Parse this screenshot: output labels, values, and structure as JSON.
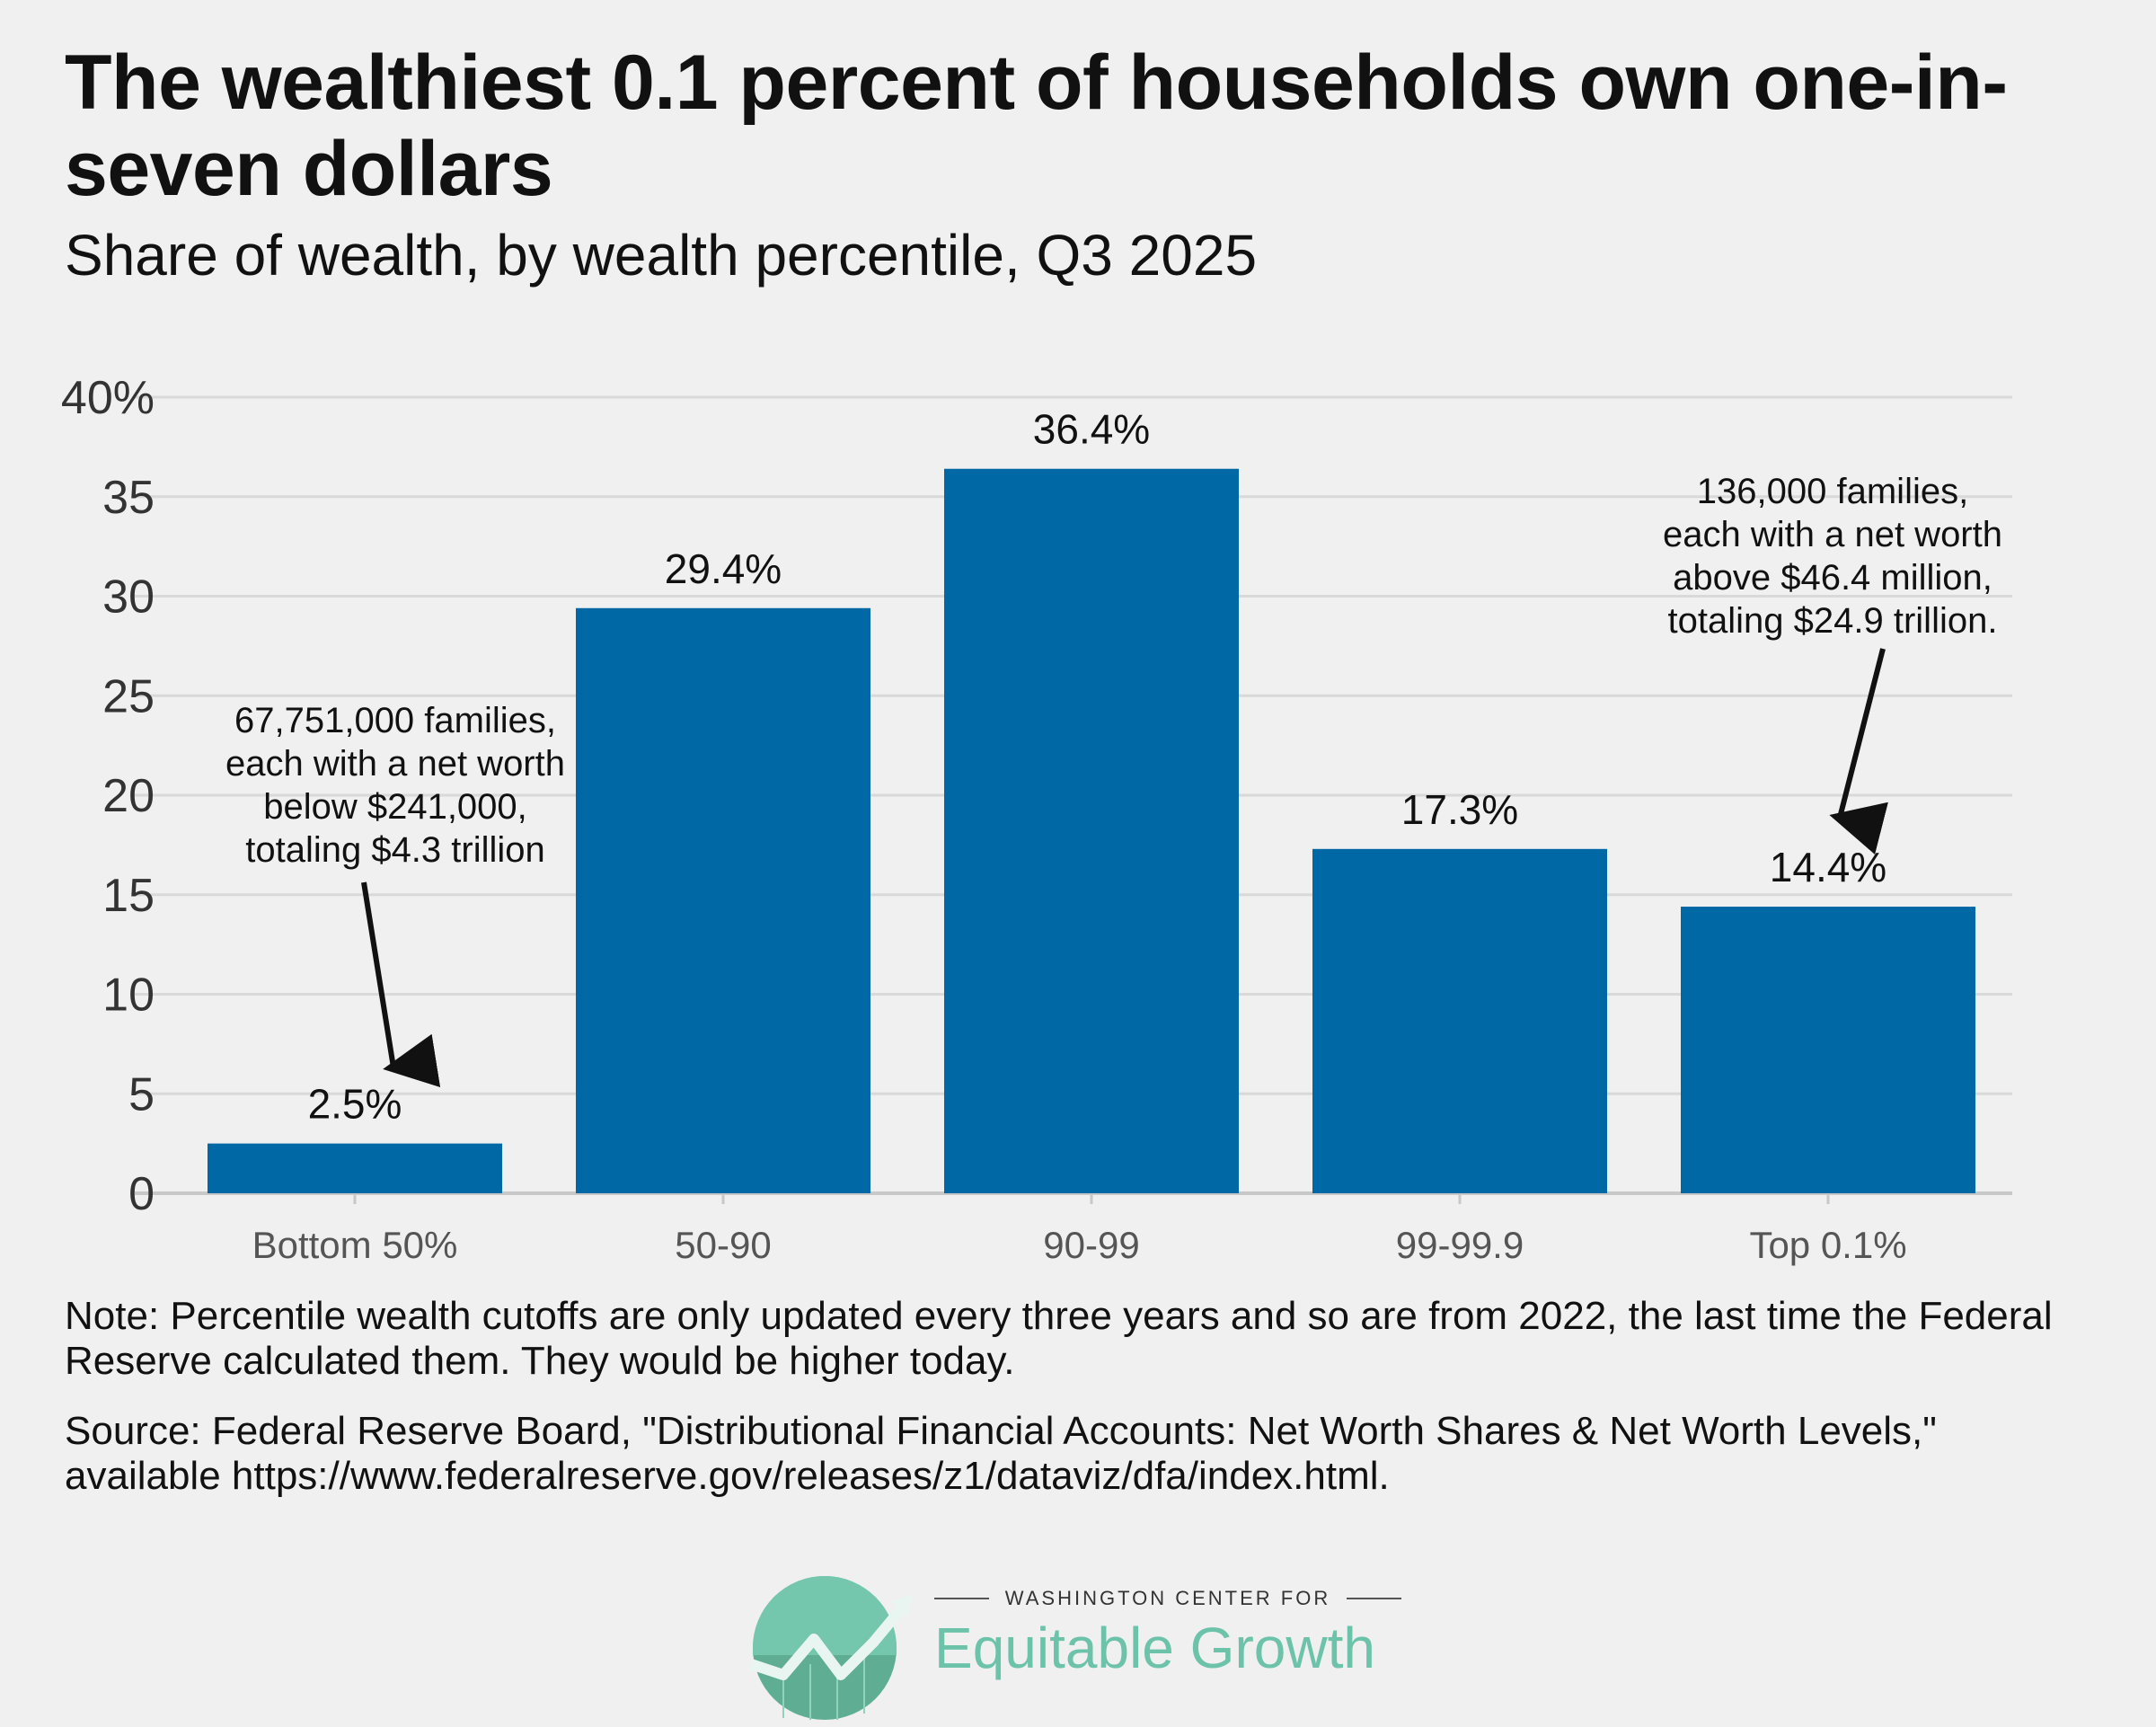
{
  "title": "The wealthiest 0.1 percent of households own one-in-seven dollars",
  "subtitle": "Share of wealth, by wealth percentile, Q3 2025",
  "note": "Note: Percentile wealth cutoffs are only updated every three years and so are from 2022, the last time the Federal Reserve calculated them. They would be higher today.",
  "source": "Source: Federal Reserve Board, \"Distributional Financial Accounts: Net Worth Shares & Net Worth Levels,\" available https://www.federalreserve.gov/releases/z1/dataviz/dfa/index.html.",
  "logo": {
    "top_line": "WASHINGTON CENTER FOR",
    "main": "Equitable Growth"
  },
  "colors": {
    "bar": "#0068a5",
    "grid": "#d9d9d9",
    "background": "#f0f0f0",
    "logo_green": "#6cc3a9"
  },
  "chart_data": {
    "type": "bar",
    "categories": [
      "Bottom 50%",
      "50-90",
      "90-99",
      "99-99.9",
      "Top 0.1%"
    ],
    "values": [
      2.5,
      29.4,
      36.4,
      17.3,
      14.4
    ],
    "value_labels": [
      "2.5%",
      "29.4%",
      "36.4%",
      "17.3%",
      "14.4%"
    ],
    "ylim": [
      0,
      40
    ],
    "yticks": [
      0,
      5,
      10,
      15,
      20,
      25,
      30,
      35,
      40
    ],
    "ytick_labels": [
      "0",
      "5",
      "10",
      "15",
      "20",
      "25",
      "30",
      "35",
      "40%"
    ],
    "grid": true,
    "annotations": [
      {
        "category": "Bottom 50%",
        "lines": [
          "67,751,000 families,",
          "each with a net worth",
          "below $241,000,",
          "totaling $4.3 trillion"
        ]
      },
      {
        "category": "Top 0.1%",
        "lines": [
          "136,000 families,",
          "each with a net worth",
          "above $46.4 million,",
          "totaling $24.9 trillion."
        ]
      }
    ]
  }
}
